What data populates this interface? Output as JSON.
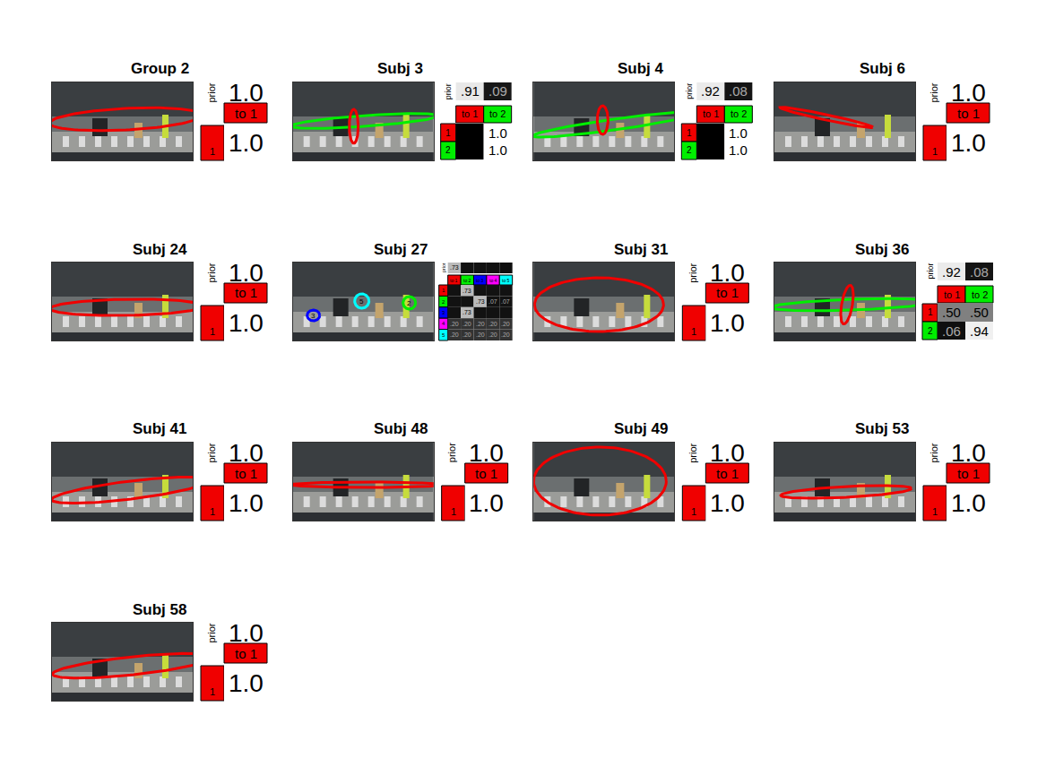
{
  "chart_data": [
    {
      "type": "ellipse",
      "title": "Group 2",
      "xlim": [
        0,
        157
      ],
      "ylim": [
        87,
        0
      ],
      "tick_labels": false,
      "prior_label": "prior",
      "colors": [
        "#f00000"
      ],
      "state_labels": [
        "1"
      ],
      "to_labels": [
        "to 1"
      ],
      "ellipses": [
        {
          "state": 1,
          "cx": 82,
          "cy": 41,
          "rx": 85,
          "ry": 12,
          "angle": 3
        }
      ],
      "prior": {
        "values": [
          1.0
        ],
        "labels": [
          "1.0"
        ]
      },
      "transitions": {
        "values": [
          [
            1.0
          ]
        ],
        "labels": [
          [
            "1.0"
          ]
        ]
      }
    },
    {
      "type": "ellipse",
      "title": "Subj 3",
      "xlim": [
        0,
        157
      ],
      "ylim": [
        87,
        0
      ],
      "tick_labels": false,
      "prior_label": "prior",
      "colors": [
        "#f00000",
        "#00ee00"
      ],
      "state_labels": [
        "1",
        "2"
      ],
      "to_labels": [
        "to 1",
        "to 2"
      ],
      "ellipses": [
        {
          "state": 2,
          "cx": 80,
          "cy": 43,
          "rx": 82,
          "ry": 6,
          "angle": 4
        },
        {
          "state": 1,
          "cx": 68,
          "cy": 49,
          "rx": 5,
          "ry": 19,
          "angle": 0
        }
      ],
      "prior": {
        "values": [
          0.91,
          0.09
        ],
        "labels": [
          ".91",
          ".09"
        ]
      },
      "transitions": {
        "values": [
          [
            0,
            1.0
          ],
          [
            0,
            1.0
          ]
        ],
        "labels": [
          [
            null,
            "1.0"
          ],
          [
            null,
            "1.0"
          ]
        ]
      }
    },
    {
      "type": "ellipse",
      "title": "Subj 4",
      "xlim": [
        0,
        157
      ],
      "ylim": [
        87,
        0
      ],
      "tick_labels": false,
      "prior_label": "prior",
      "colors": [
        "#f00000",
        "#00ee00"
      ],
      "state_labels": [
        "1",
        "2"
      ],
      "to_labels": [
        "to 1",
        "to 2"
      ],
      "ellipses": [
        {
          "state": 2,
          "cx": 90,
          "cy": 47,
          "rx": 92,
          "ry": 6,
          "angle": 8
        },
        {
          "state": 1,
          "cx": 77,
          "cy": 42,
          "rx": 6,
          "ry": 16,
          "angle": 0
        }
      ],
      "prior": {
        "values": [
          0.92,
          0.08
        ],
        "labels": [
          ".92",
          ".08"
        ]
      },
      "transitions": {
        "values": [
          [
            0,
            1.0
          ],
          [
            0,
            1.0
          ]
        ],
        "labels": [
          [
            null,
            "1.0"
          ],
          [
            null,
            "1.0"
          ]
        ]
      }
    },
    {
      "type": "ellipse",
      "title": "Subj 6",
      "xlim": [
        0,
        157
      ],
      "ylim": [
        87,
        0
      ],
      "tick_labels": false,
      "prior_label": "prior",
      "colors": [
        "#f00000"
      ],
      "state_labels": [
        "1"
      ],
      "to_labels": [
        "to 1"
      ],
      "ellipses": [
        {
          "state": 1,
          "cx": 58,
          "cy": 39,
          "rx": 53,
          "ry": 3,
          "angle": -12
        }
      ],
      "prior": {
        "values": [
          1.0
        ],
        "labels": [
          "1.0"
        ]
      },
      "transitions": {
        "values": [
          [
            1.0
          ]
        ],
        "labels": [
          [
            "1.0"
          ]
        ]
      }
    },
    {
      "type": "ellipse",
      "title": "Subj 24",
      "xlim": [
        0,
        157
      ],
      "ylim": [
        87,
        0
      ],
      "tick_labels": false,
      "prior_label": "prior",
      "colors": [
        "#f00000"
      ],
      "state_labels": [
        "1"
      ],
      "to_labels": [
        "to 1"
      ],
      "ellipses": [
        {
          "state": 1,
          "cx": 83,
          "cy": 50,
          "rx": 85,
          "ry": 9,
          "angle": 1
        }
      ],
      "prior": {
        "values": [
          1.0
        ],
        "labels": [
          "1.0"
        ]
      },
      "transitions": {
        "values": [
          [
            1.0
          ]
        ],
        "labels": [
          [
            "1.0"
          ]
        ]
      }
    },
    {
      "type": "ellipse",
      "title": "Subj 27",
      "xlim": [
        0,
        157
      ],
      "ylim": [
        87,
        0
      ],
      "tick_labels": false,
      "prior_label": "prior",
      "colors": [
        "#f00000",
        "#00ee00",
        "#0000ff",
        "#ff00ff",
        "#00ffff"
      ],
      "state_labels": [
        "1",
        "2",
        "3",
        "4",
        "5"
      ],
      "to_labels": [
        "to 1",
        "to 2",
        "to 3",
        "to 4",
        "to 5"
      ],
      "ellipses": [
        {
          "state": 3,
          "cx": 23,
          "cy": 59,
          "rx": 7,
          "ry": 6,
          "angle": 0,
          "label": "3"
        },
        {
          "state": 5,
          "cx": 77,
          "cy": 43,
          "rx": 8,
          "ry": 8,
          "angle": 0,
          "label": "5"
        },
        {
          "state": 2,
          "cx": 130,
          "cy": 45,
          "rx": 7,
          "ry": 7,
          "angle": 0,
          "label": "2"
        }
      ],
      "prior": {
        "values": [
          0.73,
          0.07,
          0.07,
          0.07,
          0.06
        ],
        "labels": [
          ".73",
          null,
          null,
          null,
          null
        ]
      },
      "transitions": {
        "values": [
          [
            0.07,
            0.73,
            0.07,
            0.07,
            0.07
          ],
          [
            0.07,
            0.07,
            0.73,
            0.07,
            0.07
          ],
          [
            0.07,
            0.73,
            0.07,
            0.07,
            0.07
          ],
          [
            0.2,
            0.2,
            0.2,
            0.2,
            0.2
          ],
          [
            0.2,
            0.2,
            0.2,
            0.2,
            0.2
          ]
        ],
        "labels": [
          [
            null,
            ".73",
            null,
            null,
            null
          ],
          [
            null,
            null,
            ".73",
            ".07",
            ".07"
          ],
          [
            null,
            ".73",
            null,
            null,
            null
          ],
          [
            ".20",
            ".20",
            ".20",
            ".20",
            ".20"
          ],
          [
            ".20",
            ".20",
            ".20",
            ".20",
            ".20"
          ]
        ]
      }
    },
    {
      "type": "ellipse",
      "title": "Subj 31",
      "xlim": [
        0,
        157
      ],
      "ylim": [
        87,
        0
      ],
      "tick_labels": false,
      "prior_label": "prior",
      "colors": [
        "#f00000"
      ],
      "state_labels": [
        "1"
      ],
      "to_labels": [
        "to 1"
      ],
      "ellipses": [
        {
          "state": 1,
          "cx": 73,
          "cy": 47,
          "rx": 72,
          "ry": 30,
          "angle": 0
        }
      ],
      "prior": {
        "values": [
          1.0
        ],
        "labels": [
          "1.0"
        ]
      },
      "transitions": {
        "values": [
          [
            1.0
          ]
        ],
        "labels": [
          [
            "1.0"
          ]
        ]
      }
    },
    {
      "type": "ellipse",
      "title": "Subj 36",
      "xlim": [
        0,
        157
      ],
      "ylim": [
        87,
        0
      ],
      "tick_labels": false,
      "prior_label": "prior",
      "colors": [
        "#f00000",
        "#00ee00"
      ],
      "state_labels": [
        "1",
        "2"
      ],
      "to_labels": [
        "to 1",
        "to 2"
      ],
      "ellipses": [
        {
          "state": 2,
          "cx": 86,
          "cy": 47,
          "rx": 90,
          "ry": 6,
          "angle": 2
        },
        {
          "state": 1,
          "cx": 81,
          "cy": 47,
          "rx": 6,
          "ry": 22,
          "angle": -10
        }
      ],
      "prior": {
        "values": [
          0.92,
          0.08
        ],
        "labels": [
          ".92",
          ".08"
        ]
      },
      "transitions": {
        "values": [
          [
            0.5,
            0.5
          ],
          [
            0.06,
            0.94
          ]
        ],
        "labels": [
          [
            ".50",
            ".50"
          ],
          [
            ".06",
            ".94"
          ]
        ]
      }
    },
    {
      "type": "ellipse",
      "title": "Subj 41",
      "xlim": [
        0,
        157
      ],
      "ylim": [
        87,
        0
      ],
      "tick_labels": false,
      "prior_label": "prior",
      "colors": [
        "#f00000"
      ],
      "state_labels": [
        "1"
      ],
      "to_labels": [
        "to 1"
      ],
      "ellipses": [
        {
          "state": 1,
          "cx": 87,
          "cy": 53,
          "rx": 88,
          "ry": 10,
          "angle": 7
        }
      ],
      "prior": {
        "values": [
          1.0
        ],
        "labels": [
          "1.0"
        ]
      },
      "transitions": {
        "values": [
          [
            1.0
          ]
        ],
        "labels": [
          [
            "1.0"
          ]
        ]
      }
    },
    {
      "type": "ellipse",
      "title": "Subj 48",
      "xlim": [
        0,
        157
      ],
      "ylim": [
        87,
        0
      ],
      "tick_labels": false,
      "prior_label": "prior",
      "colors": [
        "#f00000"
      ],
      "state_labels": [
        "1"
      ],
      "to_labels": [
        "to 1"
      ],
      "ellipses": [
        {
          "state": 1,
          "cx": 82,
          "cy": 47,
          "rx": 84,
          "ry": 3,
          "angle": 0
        }
      ],
      "prior": {
        "values": [
          1.0
        ],
        "labels": [
          "1.0"
        ]
      },
      "transitions": {
        "values": [
          [
            1.0
          ]
        ],
        "labels": [
          [
            "1.0"
          ]
        ]
      }
    },
    {
      "type": "ellipse",
      "title": "Subj 49",
      "xlim": [
        0,
        157
      ],
      "ylim": [
        87,
        0
      ],
      "tick_labels": false,
      "prior_label": "prior",
      "colors": [
        "#f00000"
      ],
      "state_labels": [
        "1"
      ],
      "to_labels": [
        "to 1"
      ],
      "ellipses": [
        {
          "state": 1,
          "cx": 74,
          "cy": 43,
          "rx": 74,
          "ry": 38,
          "angle": 0
        }
      ],
      "prior": {
        "values": [
          1.0
        ],
        "labels": [
          "1.0"
        ]
      },
      "transitions": {
        "values": [
          [
            1.0
          ]
        ],
        "labels": [
          [
            "1.0"
          ]
        ]
      }
    },
    {
      "type": "ellipse",
      "title": "Subj 53",
      "xlim": [
        0,
        157
      ],
      "ylim": [
        87,
        0
      ],
      "tick_labels": false,
      "prior_label": "prior",
      "colors": [
        "#f00000"
      ],
      "state_labels": [
        "1"
      ],
      "to_labels": [
        "to 1"
      ],
      "ellipses": [
        {
          "state": 1,
          "cx": 80,
          "cy": 55,
          "rx": 73,
          "ry": 6,
          "angle": 3
        }
      ],
      "prior": {
        "values": [
          1.0
        ],
        "labels": [
          "1.0"
        ]
      },
      "transitions": {
        "values": [
          [
            1.0
          ]
        ],
        "labels": [
          [
            "1.0"
          ]
        ]
      }
    },
    {
      "type": "ellipse",
      "title": "Subj 58",
      "xlim": [
        0,
        157
      ],
      "ylim": [
        87,
        0
      ],
      "tick_labels": false,
      "prior_label": "prior",
      "colors": [
        "#f00000"
      ],
      "state_labels": [
        "1"
      ],
      "to_labels": [
        "to 1"
      ],
      "ellipses": [
        {
          "state": 1,
          "cx": 90,
          "cy": 48,
          "rx": 90,
          "ry": 10,
          "angle": 6
        }
      ],
      "prior": {
        "values": [
          1.0
        ],
        "labels": [
          "1.0"
        ]
      },
      "transitions": {
        "values": [
          [
            1.0
          ]
        ],
        "labels": [
          [
            "1.0"
          ]
        ]
      }
    }
  ]
}
